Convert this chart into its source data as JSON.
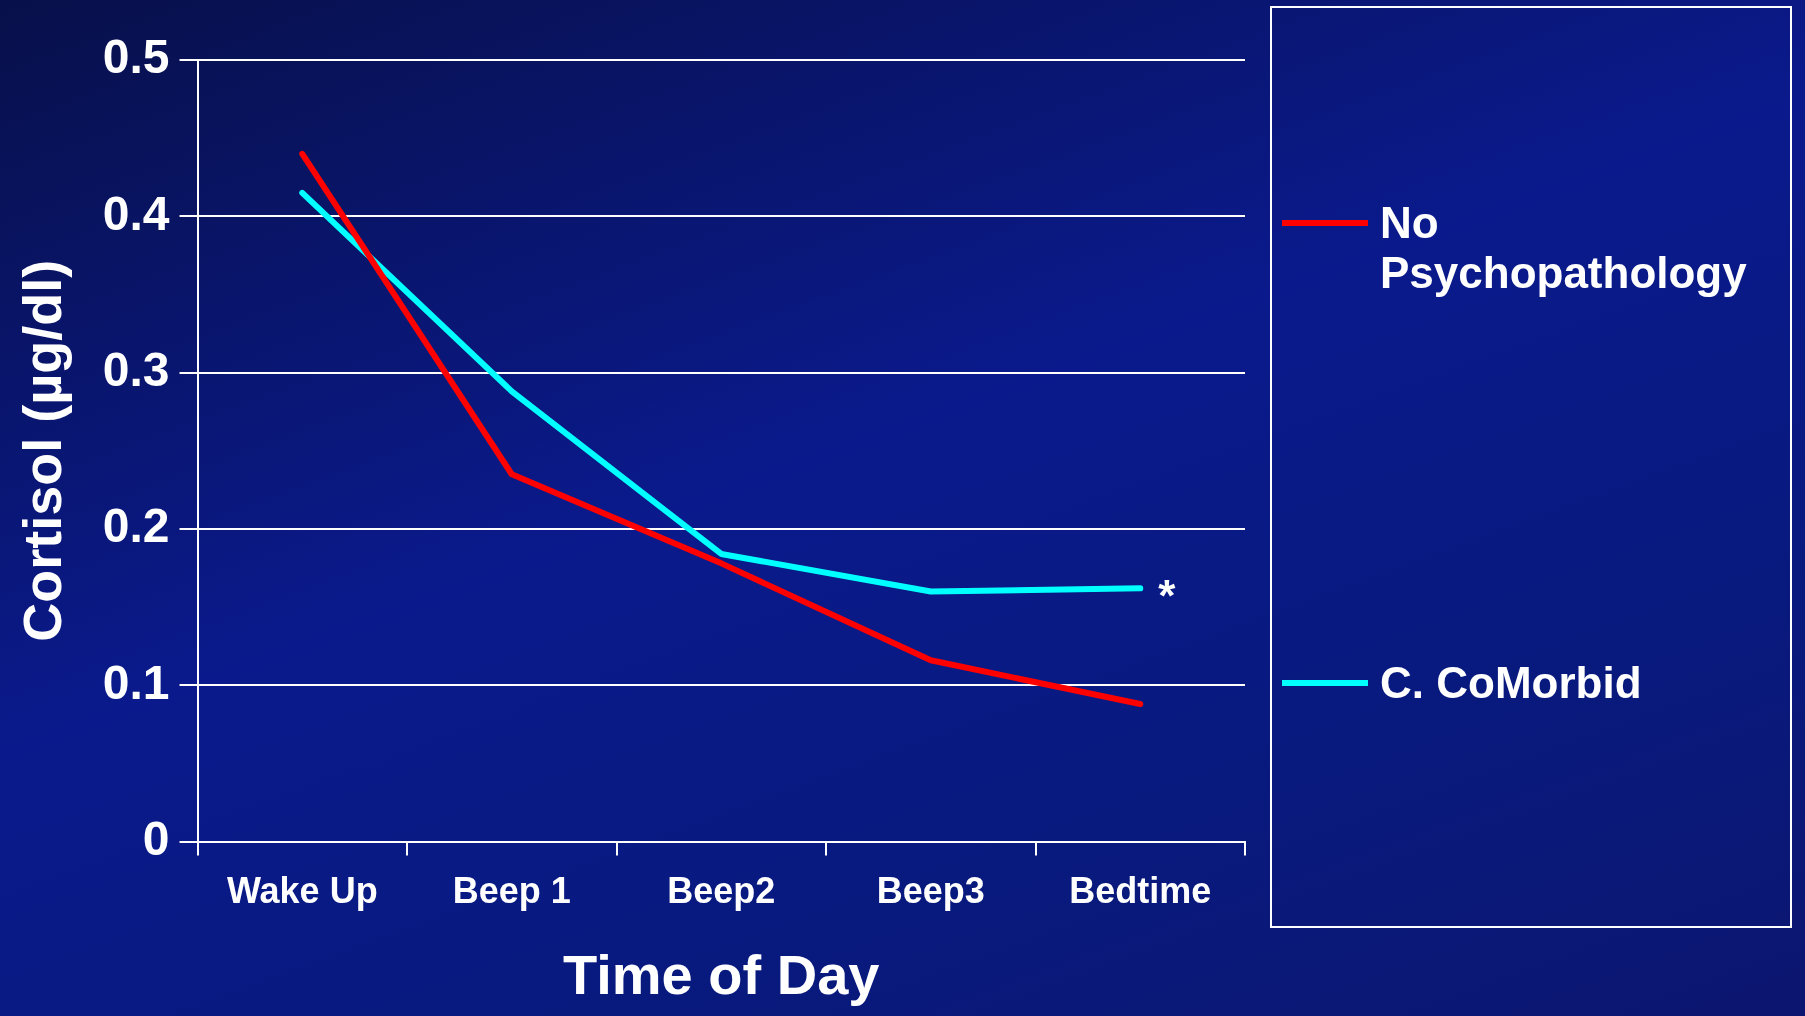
{
  "chart_data": {
    "type": "line",
    "xlabel": "Time of Day",
    "ylabel": "Cortisol (µg/dl)",
    "categories": [
      "Wake Up",
      "Beep 1",
      "Beep2",
      "Beep3",
      "Bedtime"
    ],
    "series": [
      {
        "name": "No Psychopathology",
        "color": "#ff0000",
        "values": [
          0.44,
          0.235,
          0.178,
          0.116,
          0.088
        ]
      },
      {
        "name": "C. CoMorbid",
        "color": "#00ffff",
        "values": [
          0.415,
          0.288,
          0.184,
          0.16,
          0.162
        ]
      }
    ],
    "ylim": [
      0,
      0.5
    ],
    "yticks": [
      0,
      0.1,
      0.2,
      0.3,
      0.4,
      0.5
    ],
    "grid": "y",
    "legend": "right",
    "marker": "none",
    "line_style": "solid",
    "annotations": [
      {
        "text": "*",
        "x": "Bedtime",
        "y": 0.162
      }
    ]
  }
}
